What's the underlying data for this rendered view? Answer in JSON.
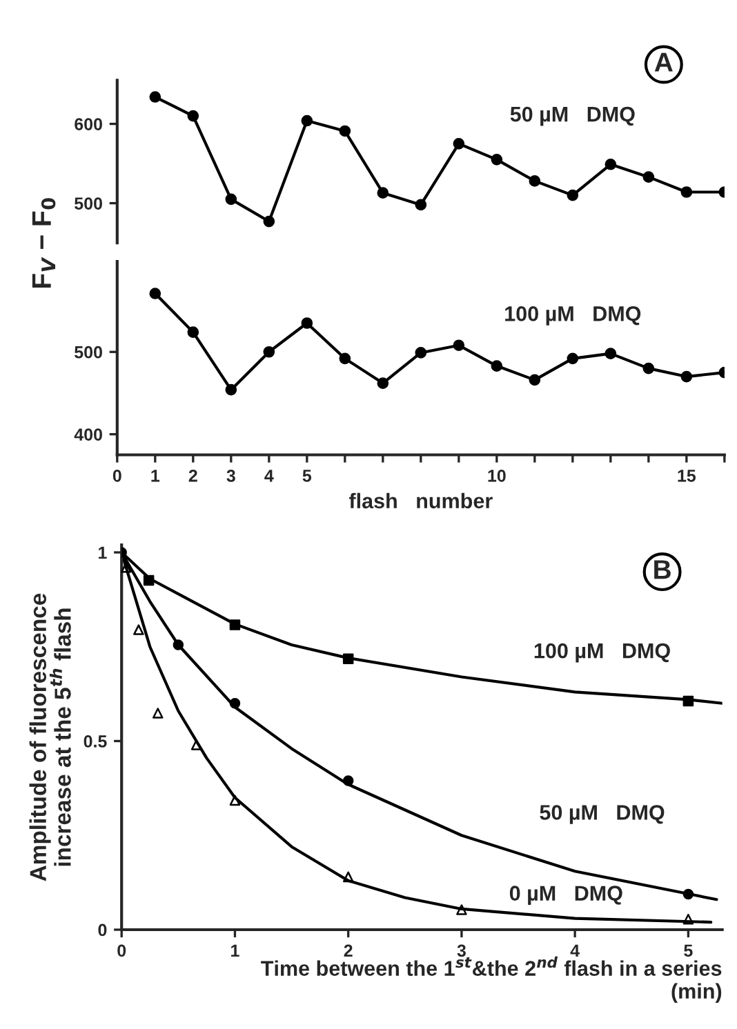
{
  "chart_data": [
    {
      "type": "line",
      "ylabel": "F$_{V}$ − F$_{0}$",
      "x": [
        1,
        2,
        3,
        4,
        5,
        6,
        7,
        8,
        9,
        10,
        11,
        12,
        13,
        14,
        15,
        16
      ],
      "ylim": [
        450,
        655
      ],
      "yticks": [
        500,
        600
      ],
      "tick_labels": "y",
      "marker": "circle",
      "grid": false,
      "legend": false,
      "series": [
        {
          "color": "#000000",
          "values": [
            634,
            610,
            505,
            477,
            604,
            591,
            513,
            498,
            575,
            555,
            528,
            510,
            549,
            533,
            514,
            514
          ]
        }
      ],
      "annotations": [
        "A",
        "50 µM   DMQ"
      ]
    },
    {
      "type": "line",
      "xlabel": "flash   number",
      "x": [
        1,
        2,
        3,
        4,
        5,
        6,
        7,
        8,
        9,
        10,
        11,
        12,
        13,
        14,
        15,
        16
      ],
      "xlim": [
        0,
        16
      ],
      "ylim": [
        375,
        610
      ],
      "yticks": [
        400,
        500
      ],
      "xticks": [
        0,
        1,
        2,
        3,
        4,
        5,
        {
          "value": 6,
          "label": null
        },
        {
          "value": 7,
          "label": null
        },
        {
          "value": 8,
          "label": null
        },
        {
          "value": 9,
          "label": null
        },
        10,
        {
          "value": 11,
          "label": null
        },
        {
          "value": 12,
          "label": null
        },
        {
          "value": 13,
          "label": null
        },
        {
          "value": 14,
          "label": null
        },
        15,
        {
          "value": 16,
          "label": null
        }
      ],
      "marker": "circle",
      "grid": false,
      "legend": false,
      "series": [
        {
          "color": "#000000",
          "values": [
            571,
            524,
            454,
            500,
            535,
            492,
            462,
            499,
            508,
            483,
            466,
            492,
            498,
            480,
            470,
            475
          ]
        }
      ],
      "annotations": [
        "100 µM   DMQ"
      ]
    },
    {
      "type": "scatter",
      "xlabel": "Time between the 1$^{st}$&the 2$^{nd}$ flash in a series\n(min)",
      "ylabel": "Amplitude of fluorescence\nincrease at the 5$^{th}$ flash",
      "xlim": [
        0,
        5.3
      ],
      "ylim": [
        0,
        1.02
      ],
      "xticks": [
        0,
        1,
        2,
        3,
        4,
        5
      ],
      "yticks": [
        0,
        0.5,
        1
      ],
      "grid": false,
      "legend": false,
      "series": [
        {
          "type": "scatter",
          "marker": "square",
          "color": "#000000",
          "x": [
            0.24,
            1,
            2,
            5
          ],
          "values": [
            0.926,
            0.808,
            0.718,
            0.606
          ]
        },
        {
          "type": "scatter",
          "marker": "circle",
          "color": "#000000",
          "x": [
            0,
            0.5,
            1,
            2,
            5
          ],
          "values": [
            1,
            0.755,
            0.6,
            0.395,
            0.094
          ]
        },
        {
          "type": "scatter",
          "marker": "triangle",
          "color": "#000000",
          "x": [
            0.04,
            0.15,
            0.32,
            0.66,
            1,
            2,
            3,
            5
          ],
          "values": [
            0.96,
            0.795,
            0.574,
            0.49,
            0.343,
            0.14,
            0.053,
            0.028
          ]
        },
        {
          "type": "line",
          "marker": "none",
          "color": "#000000",
          "x": [
            0,
            0.25,
            0.5,
            1,
            1.5,
            2,
            3,
            4,
            5,
            5.3
          ],
          "values": [
            1,
            0.93,
            0.89,
            0.81,
            0.755,
            0.72,
            0.67,
            0.63,
            0.61,
            0.6
          ]
        },
        {
          "type": "line",
          "marker": "none",
          "color": "#000000",
          "x": [
            0,
            0.25,
            0.5,
            1,
            1.5,
            2,
            3,
            4,
            5,
            5.25
          ],
          "values": [
            1,
            0.87,
            0.755,
            0.59,
            0.48,
            0.385,
            0.25,
            0.155,
            0.095,
            0.08
          ]
        },
        {
          "type": "line",
          "marker": "none",
          "color": "#000000",
          "x": [
            0,
            0.25,
            0.5,
            0.75,
            1,
            1.5,
            2,
            2.5,
            3,
            4,
            5.2
          ],
          "values": [
            1,
            0.75,
            0.58,
            0.455,
            0.35,
            0.22,
            0.13,
            0.085,
            0.055,
            0.03,
            0.02
          ]
        }
      ],
      "annotations": [
        "B",
        "100 µM   DMQ",
        "50 µM   DMQ",
        "0 µM   DMQ"
      ]
    }
  ]
}
